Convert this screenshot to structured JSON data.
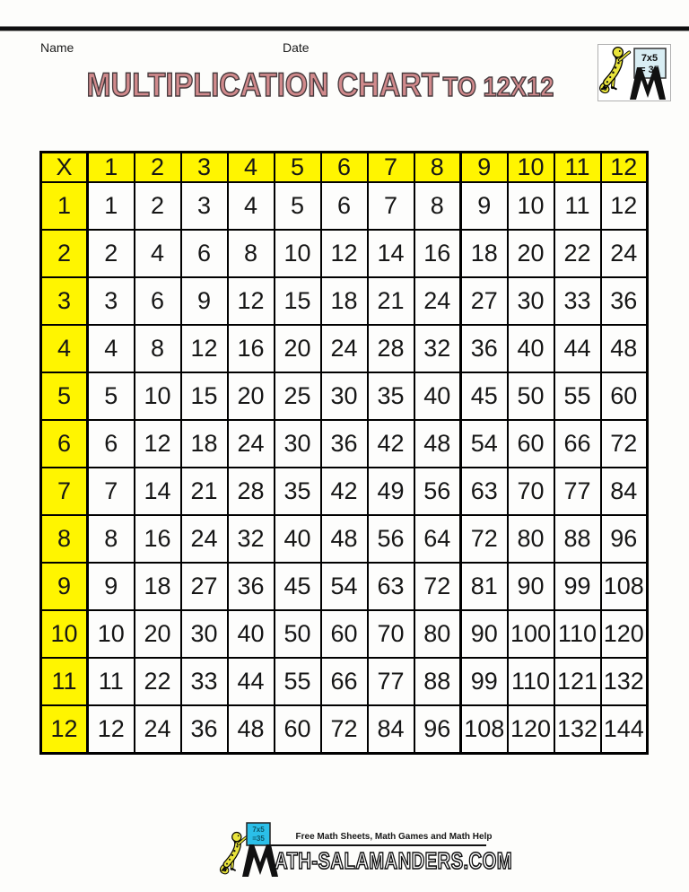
{
  "header": {
    "name_label": "Name",
    "date_label": "Date"
  },
  "title": {
    "main": "MULTIPLICATION CHART",
    "suffix": "TO 12X12"
  },
  "corner_logo": {
    "board_line1": "7x5",
    "board_line2": "= 35"
  },
  "footer": {
    "tagline": "Free Math Sheets, Math Games and Math Help",
    "wordmark": "ATH-SALAMANDERS.COM",
    "board_line1": "7x5",
    "board_line2": "=35"
  },
  "colors": {
    "header_cell_bg": "#fff500",
    "grid_line": "#000000",
    "title_fill": "#d18a8c",
    "title_outline": "#463a3d",
    "accent_cyan": "#2bbfe8",
    "salamander_yellow": "#e9e43c",
    "top_rule": "#101010"
  },
  "chart_data": {
    "type": "table",
    "title": "MULTIPLICATION CHART TO 12X12",
    "corner_label": "X",
    "column_headers": [
      1,
      2,
      3,
      4,
      5,
      6,
      7,
      8,
      9,
      10,
      11,
      12
    ],
    "row_headers": [
      1,
      2,
      3,
      4,
      5,
      6,
      7,
      8,
      9,
      10,
      11,
      12
    ],
    "rows": [
      [
        1,
        2,
        3,
        4,
        5,
        6,
        7,
        8,
        9,
        10,
        11,
        12
      ],
      [
        2,
        4,
        6,
        8,
        10,
        12,
        14,
        16,
        18,
        20,
        22,
        24
      ],
      [
        3,
        6,
        9,
        12,
        15,
        18,
        21,
        24,
        27,
        30,
        33,
        36
      ],
      [
        4,
        8,
        12,
        16,
        20,
        24,
        28,
        32,
        36,
        40,
        44,
        48
      ],
      [
        5,
        10,
        15,
        20,
        25,
        30,
        35,
        40,
        45,
        50,
        55,
        60
      ],
      [
        6,
        12,
        18,
        24,
        30,
        36,
        42,
        48,
        54,
        60,
        66,
        72
      ],
      [
        7,
        14,
        21,
        28,
        35,
        42,
        49,
        56,
        63,
        70,
        77,
        84
      ],
      [
        8,
        16,
        24,
        32,
        40,
        48,
        56,
        64,
        72,
        80,
        88,
        96
      ],
      [
        9,
        18,
        27,
        36,
        45,
        54,
        63,
        72,
        81,
        90,
        99,
        108
      ],
      [
        10,
        20,
        30,
        40,
        50,
        60,
        70,
        80,
        90,
        100,
        110,
        120
      ],
      [
        11,
        22,
        33,
        44,
        55,
        66,
        77,
        88,
        99,
        110,
        121,
        132
      ],
      [
        12,
        24,
        36,
        48,
        60,
        72,
        84,
        96,
        108,
        120,
        132,
        144
      ]
    ]
  }
}
